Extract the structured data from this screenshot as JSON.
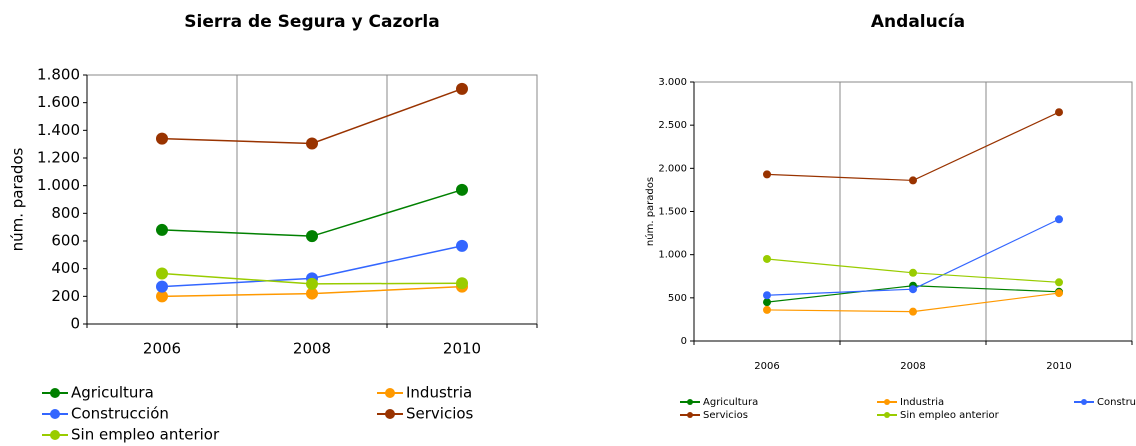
{
  "chart_data": [
    {
      "type": "line",
      "title": "Sierra de Segura y Cazorla",
      "y_label": "núm. parados",
      "categories": [
        "2006",
        "2008",
        "2010"
      ],
      "ylim": [
        0,
        1800
      ],
      "yticks": [
        0,
        200,
        400,
        600,
        800,
        {
          "value": 1000,
          "label": "1.000"
        },
        {
          "value": 1200,
          "label": "1.200"
        },
        {
          "value": 1400,
          "label": "1.400"
        },
        {
          "value": 1600,
          "label": "1.600"
        },
        {
          "value": 1800,
          "label": "1.800"
        }
      ],
      "series": [
        {
          "name": "Agricultura",
          "color": "#008000",
          "values": [
            680,
            635,
            970
          ]
        },
        {
          "name": "Industria",
          "color": "#ff9900",
          "values": [
            200,
            220,
            270
          ]
        },
        {
          "name": "Construcción",
          "color": "#3366ff",
          "values": [
            270,
            330,
            565
          ]
        },
        {
          "name": "Servicios",
          "color": "#993300",
          "values": [
            1340,
            1305,
            1700
          ]
        },
        {
          "name": "Sin empleo anterior",
          "color": "#99cc00",
          "values": [
            365,
            290,
            295
          ]
        }
      ]
    },
    {
      "type": "line",
      "title": "Andalucía",
      "y_label": "núm. parados",
      "categories": [
        "2006",
        "2008",
        "2010"
      ],
      "ylim": [
        0,
        3000
      ],
      "yticks": [
        0,
        500,
        {
          "value": 1000,
          "label": "1.000"
        },
        {
          "value": 1500,
          "label": "1.500"
        },
        {
          "value": 2000,
          "label": "2.000"
        },
        {
          "value": 2500,
          "label": "2.500"
        },
        {
          "value": 3000,
          "label": "3.000"
        }
      ],
      "series": [
        {
          "name": "Agricultura",
          "color": "#008000",
          "values": [
            450,
            640,
            570
          ]
        },
        {
          "name": "Industria",
          "color": "#ff9900",
          "values": [
            360,
            340,
            555
          ]
        },
        {
          "name": "Construcción",
          "color": "#3366ff",
          "values": [
            530,
            600,
            1410
          ]
        },
        {
          "name": "Servicios",
          "color": "#993300",
          "values": [
            1930,
            1860,
            2650
          ]
        },
        {
          "name": "Sin empleo anterior",
          "color": "#99cc00",
          "values": [
            950,
            790,
            680
          ]
        }
      ]
    }
  ]
}
